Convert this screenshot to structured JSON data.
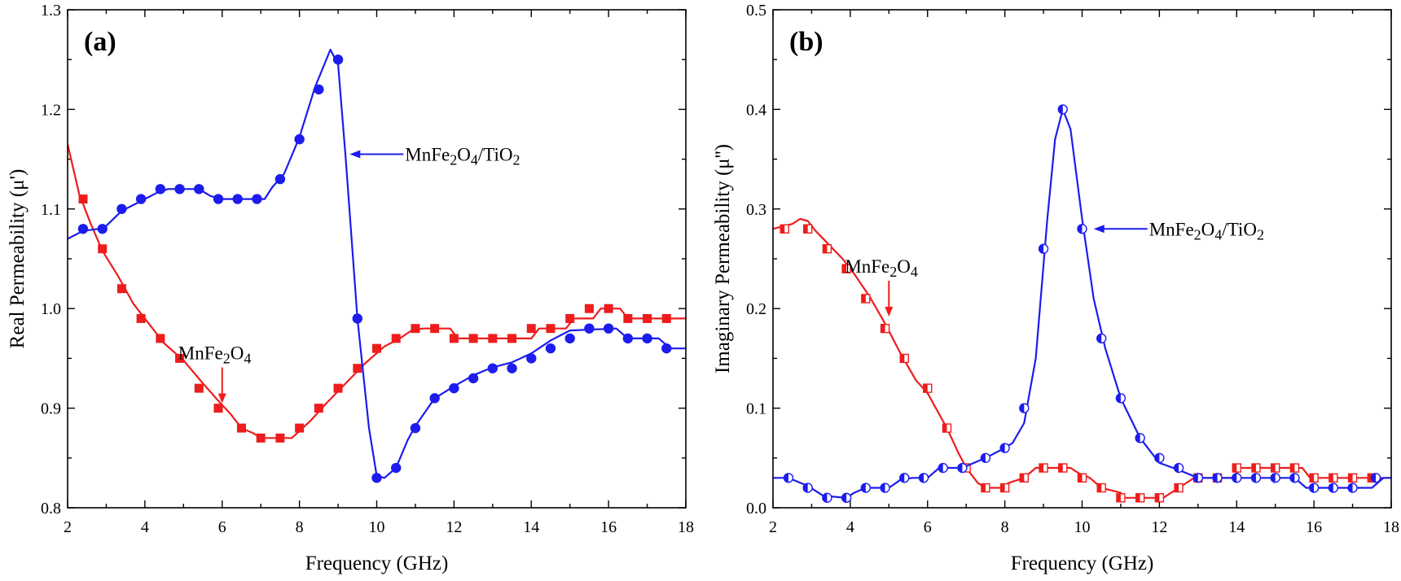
{
  "chart_data": [
    {
      "type": "line",
      "panel_label": "(a)",
      "xlabel": "Frequency (GHz)",
      "ylabel": "Real Permeability (μ')",
      "xlim": [
        2,
        18
      ],
      "ylim": [
        0.8,
        1.3
      ],
      "xticks": [
        "2",
        "4",
        "6",
        "8",
        "10",
        "12",
        "14",
        "16",
        "18"
      ],
      "yticks": [
        "0.8",
        "0.9",
        "1.0",
        "1.1",
        "1.2",
        "1.3"
      ],
      "series": [
        {
          "name": "MnFe2O4",
          "color": "#ee1c1c",
          "marker": "filled-square",
          "curve": [
            [
              2.0,
              1.165
            ],
            [
              2.3,
              1.115
            ],
            [
              2.6,
              1.085
            ],
            [
              2.9,
              1.058
            ],
            [
              3.3,
              1.033
            ],
            [
              3.7,
              1.005
            ],
            [
              4.1,
              0.985
            ],
            [
              4.5,
              0.965
            ],
            [
              5.0,
              0.948
            ],
            [
              5.5,
              0.925
            ],
            [
              6.0,
              0.903
            ],
            [
              6.2,
              0.895
            ],
            [
              6.5,
              0.88
            ],
            [
              6.8,
              0.875
            ],
            [
              7.0,
              0.87
            ],
            [
              7.8,
              0.87
            ],
            [
              8.0,
              0.877
            ],
            [
              8.3,
              0.888
            ],
            [
              8.7,
              0.905
            ],
            [
              9.2,
              0.925
            ],
            [
              9.7,
              0.945
            ],
            [
              10.2,
              0.962
            ],
            [
              10.6,
              0.97
            ],
            [
              10.9,
              0.978
            ],
            [
              11.2,
              0.98
            ],
            [
              11.9,
              0.98
            ],
            [
              12.1,
              0.97
            ],
            [
              14.0,
              0.97
            ],
            [
              14.2,
              0.98
            ],
            [
              14.9,
              0.98
            ],
            [
              15.1,
              0.99
            ],
            [
              15.6,
              0.99
            ],
            [
              15.8,
              1.0
            ],
            [
              16.3,
              1.0
            ],
            [
              16.5,
              0.99
            ],
            [
              18.0,
              0.99
            ]
          ],
          "x": [
            2.4,
            2.9,
            3.4,
            3.9,
            4.4,
            4.9,
            5.4,
            5.9,
            6.5,
            7.0,
            7.5,
            8.0,
            8.5,
            9.0,
            9.5,
            10.0,
            10.5,
            11.0,
            11.5,
            12.0,
            12.5,
            13.0,
            13.5,
            14.0,
            14.5,
            15.0,
            15.5,
            16.0,
            16.5,
            17.0,
            17.5
          ],
          "values": [
            1.11,
            1.06,
            1.02,
            0.99,
            0.97,
            0.95,
            0.92,
            0.9,
            0.88,
            0.87,
            0.87,
            0.88,
            0.9,
            0.92,
            0.94,
            0.96,
            0.97,
            0.98,
            0.98,
            0.97,
            0.97,
            0.97,
            0.97,
            0.98,
            0.98,
            0.99,
            1.0,
            1.0,
            0.99,
            0.99,
            0.99
          ]
        },
        {
          "name": "MnFe2O4/TiO2",
          "color": "#1c1cee",
          "marker": "filled-circle",
          "curve": [
            [
              2.0,
              1.07
            ],
            [
              2.4,
              1.078
            ],
            [
              2.8,
              1.08
            ],
            [
              3.0,
              1.083
            ],
            [
              3.4,
              1.098
            ],
            [
              3.8,
              1.106
            ],
            [
              4.3,
              1.116
            ],
            [
              4.6,
              1.12
            ],
            [
              5.4,
              1.12
            ],
            [
              5.7,
              1.113
            ],
            [
              6.0,
              1.11
            ],
            [
              7.1,
              1.11
            ],
            [
              7.3,
              1.122
            ],
            [
              7.6,
              1.135
            ],
            [
              8.0,
              1.172
            ],
            [
              8.4,
              1.222
            ],
            [
              8.8,
              1.26
            ],
            [
              9.0,
              1.245
            ],
            [
              9.2,
              1.15
            ],
            [
              9.5,
              0.99
            ],
            [
              9.8,
              0.88
            ],
            [
              10.0,
              0.832
            ],
            [
              10.2,
              0.83
            ],
            [
              10.5,
              0.84
            ],
            [
              10.8,
              0.868
            ],
            [
              11.0,
              0.882
            ],
            [
              11.5,
              0.91
            ],
            [
              12.0,
              0.922
            ],
            [
              12.5,
              0.933
            ],
            [
              13.0,
              0.941
            ],
            [
              13.5,
              0.946
            ],
            [
              14.0,
              0.955
            ],
            [
              14.5,
              0.968
            ],
            [
              15.0,
              0.978
            ],
            [
              16.2,
              0.98
            ],
            [
              16.5,
              0.97
            ],
            [
              17.3,
              0.97
            ],
            [
              17.6,
              0.96
            ],
            [
              18.0,
              0.96
            ]
          ],
          "x": [
            2.4,
            2.9,
            3.4,
            3.9,
            4.4,
            4.9,
            5.4,
            5.9,
            6.4,
            6.9,
            7.5,
            8.0,
            8.5,
            9.0,
            9.5,
            10.0,
            10.5,
            11.0,
            11.5,
            12.0,
            12.5,
            13.0,
            13.5,
            14.0,
            14.5,
            15.0,
            15.5,
            16.0,
            16.5,
            17.0,
            17.5
          ],
          "values": [
            1.08,
            1.08,
            1.1,
            1.11,
            1.12,
            1.12,
            1.12,
            1.11,
            1.11,
            1.11,
            1.13,
            1.17,
            1.22,
            1.25,
            0.99,
            0.83,
            0.84,
            0.88,
            0.91,
            0.92,
            0.93,
            0.94,
            0.94,
            0.95,
            0.96,
            0.97,
            0.98,
            0.98,
            0.97,
            0.97,
            0.96
          ]
        }
      ],
      "annotations": [
        {
          "text_parts": [
            "MnFe",
            "2",
            "O",
            "4"
          ],
          "points_to_x": 6.0,
          "points_to_y": 0.905,
          "arrow": "down",
          "color": "#ee1c1c"
        },
        {
          "text_parts": [
            "MnFe",
            "2",
            "O",
            "4",
            "/TiO",
            "2"
          ],
          "points_to_x": 9.3,
          "points_to_y": 1.155,
          "arrow": "left",
          "color": "#1c1cee"
        }
      ]
    },
    {
      "type": "line",
      "panel_label": "(b)",
      "xlabel": "Frequency (GHz)",
      "ylabel": "Imaginary Permeability (μ'')",
      "xlim": [
        2,
        18
      ],
      "ylim": [
        0.0,
        0.5
      ],
      "xticks": [
        "2",
        "4",
        "6",
        "8",
        "10",
        "12",
        "14",
        "16",
        "18"
      ],
      "yticks": [
        "0.0",
        "0.1",
        "0.2",
        "0.3",
        "0.4",
        "0.5"
      ],
      "series": [
        {
          "name": "MnFe2O4",
          "color": "#ee1c1c",
          "marker": "half-square",
          "curve": [
            [
              2.0,
              0.28
            ],
            [
              2.5,
              0.285
            ],
            [
              2.7,
              0.29
            ],
            [
              2.9,
              0.288
            ],
            [
              3.1,
              0.278
            ],
            [
              3.5,
              0.262
            ],
            [
              3.8,
              0.25
            ],
            [
              4.1,
              0.235
            ],
            [
              4.5,
              0.212
            ],
            [
              4.9,
              0.185
            ],
            [
              5.3,
              0.155
            ],
            [
              5.7,
              0.128
            ],
            [
              6.0,
              0.115
            ],
            [
              6.5,
              0.08
            ],
            [
              6.8,
              0.055
            ],
            [
              7.0,
              0.04
            ],
            [
              7.3,
              0.025
            ],
            [
              7.5,
              0.02
            ],
            [
              7.9,
              0.02
            ],
            [
              8.1,
              0.025
            ],
            [
              8.5,
              0.03
            ],
            [
              8.8,
              0.04
            ],
            [
              9.7,
              0.04
            ],
            [
              9.9,
              0.035
            ],
            [
              10.2,
              0.03
            ],
            [
              10.5,
              0.02
            ],
            [
              11.0,
              0.015
            ],
            [
              11.1,
              0.01
            ],
            [
              12.1,
              0.01
            ],
            [
              12.5,
              0.02
            ],
            [
              12.9,
              0.03
            ],
            [
              13.9,
              0.03
            ],
            [
              14.1,
              0.04
            ],
            [
              15.7,
              0.04
            ],
            [
              15.9,
              0.03
            ],
            [
              18.0,
              0.03
            ]
          ],
          "x": [
            2.3,
            2.9,
            3.4,
            3.9,
            4.4,
            4.9,
            5.4,
            6.0,
            6.5,
            7.0,
            7.5,
            8.0,
            8.5,
            9.0,
            9.5,
            10.0,
            10.5,
            11.0,
            11.5,
            12.0,
            12.5,
            13.0,
            13.5,
            14.0,
            14.5,
            15.0,
            15.5,
            16.0,
            16.5,
            17.0,
            17.5
          ],
          "values": [
            0.28,
            0.28,
            0.26,
            0.24,
            0.21,
            0.18,
            0.15,
            0.12,
            0.08,
            0.04,
            0.02,
            0.02,
            0.03,
            0.04,
            0.04,
            0.03,
            0.02,
            0.01,
            0.01,
            0.01,
            0.02,
            0.03,
            0.03,
            0.04,
            0.04,
            0.04,
            0.04,
            0.03,
            0.03,
            0.03,
            0.03
          ]
        },
        {
          "name": "MnFe2O4/TiO2",
          "color": "#1c1cee",
          "marker": "half-circle",
          "curve": [
            [
              2.0,
              0.03
            ],
            [
              2.4,
              0.03
            ],
            [
              2.9,
              0.022
            ],
            [
              3.3,
              0.012
            ],
            [
              3.9,
              0.01
            ],
            [
              4.1,
              0.015
            ],
            [
              4.4,
              0.02
            ],
            [
              5.0,
              0.02
            ],
            [
              5.3,
              0.028
            ],
            [
              5.6,
              0.03
            ],
            [
              6.0,
              0.03
            ],
            [
              6.3,
              0.04
            ],
            [
              6.9,
              0.04
            ],
            [
              7.5,
              0.05
            ],
            [
              7.9,
              0.058
            ],
            [
              8.2,
              0.065
            ],
            [
              8.5,
              0.085
            ],
            [
              8.8,
              0.15
            ],
            [
              9.1,
              0.29
            ],
            [
              9.3,
              0.37
            ],
            [
              9.5,
              0.4
            ],
            [
              9.7,
              0.38
            ],
            [
              10.0,
              0.29
            ],
            [
              10.3,
              0.21
            ],
            [
              10.6,
              0.16
            ],
            [
              11.0,
              0.11
            ],
            [
              11.5,
              0.07
            ],
            [
              12.0,
              0.045
            ],
            [
              12.5,
              0.038
            ],
            [
              13.0,
              0.03
            ],
            [
              15.5,
              0.03
            ],
            [
              15.8,
              0.02
            ],
            [
              17.5,
              0.02
            ],
            [
              17.8,
              0.03
            ],
            [
              18.0,
              0.03
            ]
          ],
          "x": [
            2.4,
            2.9,
            3.4,
            3.9,
            4.4,
            4.9,
            5.4,
            5.9,
            6.4,
            6.9,
            7.5,
            8.0,
            8.5,
            9.0,
            9.5,
            10.0,
            10.5,
            11.0,
            11.5,
            12.0,
            12.5,
            13.0,
            13.5,
            14.0,
            14.5,
            15.0,
            15.5,
            16.0,
            16.5,
            17.0,
            17.6
          ],
          "values": [
            0.03,
            0.02,
            0.01,
            0.01,
            0.02,
            0.02,
            0.03,
            0.03,
            0.04,
            0.04,
            0.05,
            0.06,
            0.1,
            0.26,
            0.4,
            0.28,
            0.17,
            0.11,
            0.07,
            0.05,
            0.04,
            0.03,
            0.03,
            0.03,
            0.03,
            0.03,
            0.03,
            0.02,
            0.02,
            0.02,
            0.03
          ]
        }
      ],
      "annotations": [
        {
          "text_parts": [
            "MnFe",
            "2",
            "O",
            "4"
          ],
          "points_to_x": 5.0,
          "points_to_y": 0.192,
          "arrow": "down",
          "color": "#ee1c1c"
        },
        {
          "text_parts": [
            "MnFe",
            "2",
            "O",
            "4",
            "/TiO",
            "2"
          ],
          "points_to_x": 10.3,
          "points_to_y": 0.28,
          "arrow": "left",
          "color": "#1c1cee"
        }
      ]
    }
  ]
}
